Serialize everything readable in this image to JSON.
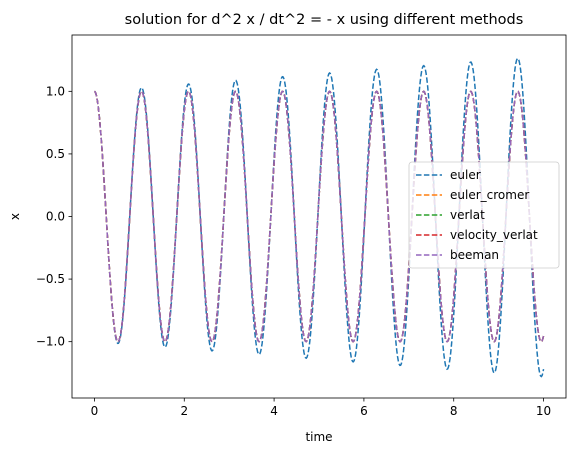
{
  "chart_data": {
    "type": "line",
    "title": "solution for d^2 x / dt^2 = - x using different methods",
    "xlabel": "time",
    "ylabel": "x",
    "xlim": [
      -0.5,
      10.5
    ],
    "ylim": [
      -1.45,
      1.45
    ],
    "x_ticks": [
      0,
      2,
      4,
      6,
      8,
      10
    ],
    "x_tick_labels": [
      "0",
      "2",
      "4",
      "6",
      "8",
      "10"
    ],
    "y_ticks": [
      -1.0,
      -0.5,
      0.0,
      0.5,
      1.0
    ],
    "y_tick_labels": [
      "−1.0",
      "−0.5",
      "0.0",
      "0.5",
      "1.0"
    ],
    "grid": false,
    "legend_position": "center-right",
    "line_style": "dashed",
    "t_range": [
      0,
      10
    ],
    "angular_frequency": 6.0,
    "series": [
      {
        "name": "euler",
        "color": "#1f77b4",
        "amplitude_growth_per_time": 0.028
      },
      {
        "name": "euler_cromer",
        "color": "#ff7f0e",
        "amplitude_growth_per_time": 0.0
      },
      {
        "name": "verlat",
        "color": "#2ca02c",
        "amplitude_growth_per_time": 0.0
      },
      {
        "name": "velocity_verlat",
        "color": "#d62728",
        "amplitude_growth_per_time": 0.0
      },
      {
        "name": "beeman",
        "color": "#9467bd",
        "amplitude_growth_per_time": 0.0
      }
    ]
  }
}
